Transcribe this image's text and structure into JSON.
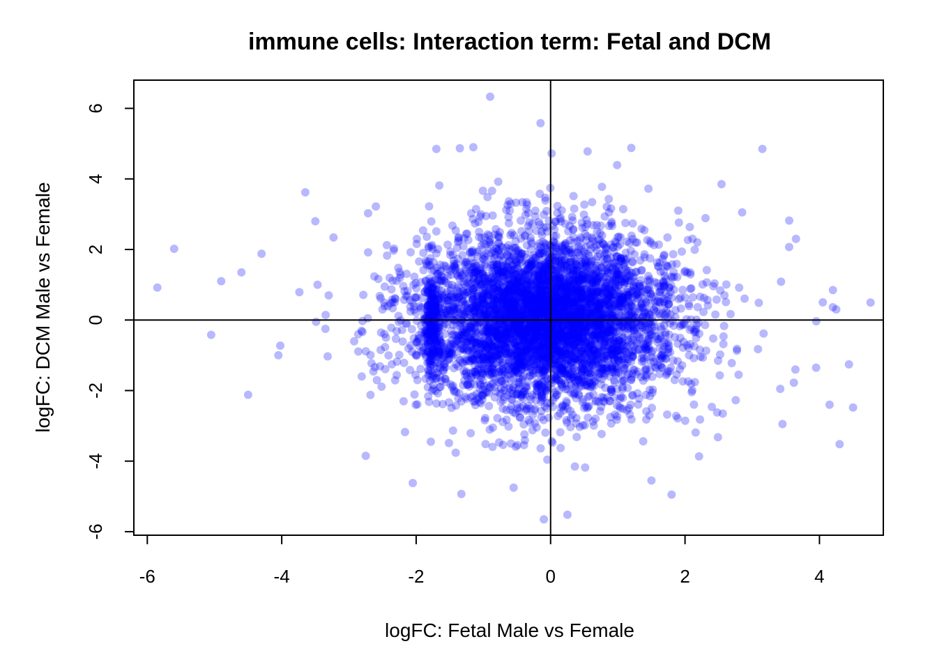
{
  "chart_data": {
    "type": "scatter",
    "title": "immune cells: Interaction term: Fetal and DCM",
    "xlabel": "logFC: Fetal Male vs Female",
    "ylabel": "logFC: DCM Male vs Female",
    "xlim": [
      -6.2,
      4.95
    ],
    "ylim": [
      -6.1,
      6.8
    ],
    "x_ticks": [
      -6,
      -4,
      -2,
      0,
      2,
      4
    ],
    "y_ticks": [
      -6,
      -4,
      -2,
      0,
      2,
      4,
      6
    ],
    "x_tick_labels": [
      "-6",
      "-4",
      "-2",
      "0",
      "2",
      "4"
    ],
    "y_tick_labels": [
      "-6",
      "-4",
      "-2",
      "0",
      "2",
      "4",
      "6"
    ],
    "reference_lines": {
      "vertical_x": 0,
      "horizontal_y": 0
    },
    "point_color": "#0000ff",
    "point_alpha": 0.28,
    "bulk_distribution": {
      "description_points": 5200,
      "x_center": -0.05,
      "x_sd": 0.85,
      "y_center": 0.0,
      "y_sd": 1.15,
      "dense_ridge_x": -1.75
    },
    "notable_points": [
      {
        "x": -5.85,
        "y": 0.92
      },
      {
        "x": -5.6,
        "y": 2.02
      },
      {
        "x": -5.05,
        "y": -0.42
      },
      {
        "x": -4.9,
        "y": 1.1
      },
      {
        "x": -4.6,
        "y": 1.35
      },
      {
        "x": -4.5,
        "y": -2.12
      },
      {
        "x": -4.3,
        "y": 1.88
      },
      {
        "x": -4.05,
        "y": -1.0
      },
      {
        "x": -3.65,
        "y": 3.62
      },
      {
        "x": -3.5,
        "y": 2.8
      },
      {
        "x": -2.75,
        "y": -3.85
      },
      {
        "x": -2.05,
        "y": -4.62
      },
      {
        "x": -0.9,
        "y": 6.33
      },
      {
        "x": -0.55,
        "y": -4.75
      },
      {
        "x": -1.35,
        "y": 4.87
      },
      {
        "x": -1.15,
        "y": 4.9
      },
      {
        "x": -1.7,
        "y": 4.85
      },
      {
        "x": -0.15,
        "y": 5.58
      },
      {
        "x": -0.1,
        "y": -5.65
      },
      {
        "x": 0.25,
        "y": -5.52
      },
      {
        "x": 0.55,
        "y": 4.78
      },
      {
        "x": 1.2,
        "y": 4.88
      },
      {
        "x": 1.5,
        "y": -4.55
      },
      {
        "x": 1.8,
        "y": -4.95
      },
      {
        "x": 3.15,
        "y": 4.85
      },
      {
        "x": 3.55,
        "y": 2.82
      },
      {
        "x": 3.65,
        "y": 2.3
      },
      {
        "x": 4.2,
        "y": 0.85
      },
      {
        "x": 4.25,
        "y": 0.3
      },
      {
        "x": 4.05,
        "y": 0.5
      },
      {
        "x": 4.15,
        "y": -2.4
      },
      {
        "x": 4.3,
        "y": -3.52
      },
      {
        "x": 4.5,
        "y": -2.48
      },
      {
        "x": 3.95,
        "y": -1.35
      },
      {
        "x": 3.45,
        "y": -2.95
      },
      {
        "x": 2.85,
        "y": 3.05
      },
      {
        "x": 1.9,
        "y": 3.1
      },
      {
        "x": -2.6,
        "y": 3.22
      },
      {
        "x": -3.35,
        "y": -0.25
      }
    ]
  }
}
